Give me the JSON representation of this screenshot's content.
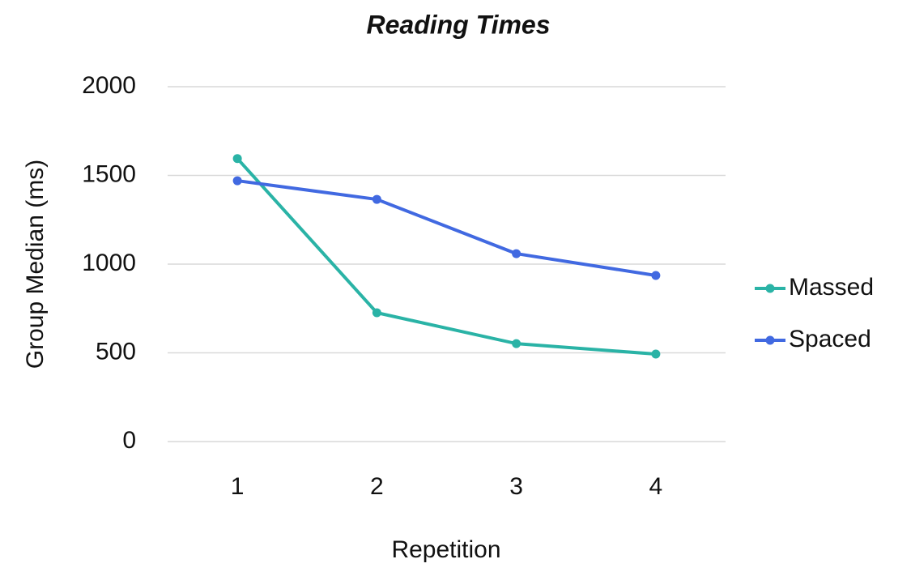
{
  "chart_data": {
    "type": "line",
    "title": "Reading Times",
    "x_label": "Repetition",
    "y_label": "Group Median (ms)",
    "categories": [
      "1",
      "2",
      "3",
      "4"
    ],
    "series": [
      {
        "name": "Massed",
        "color": "#2ab3a6",
        "values": [
          1595,
          726,
          552,
          493
        ]
      },
      {
        "name": "Spaced",
        "color": "#4169e1",
        "values": [
          1470,
          1365,
          1059,
          936
        ]
      }
    ],
    "ylim": [
      0,
      2000
    ],
    "yticks": [
      0,
      500,
      1000,
      1500,
      2000
    ],
    "grid": true,
    "legend": "right"
  }
}
